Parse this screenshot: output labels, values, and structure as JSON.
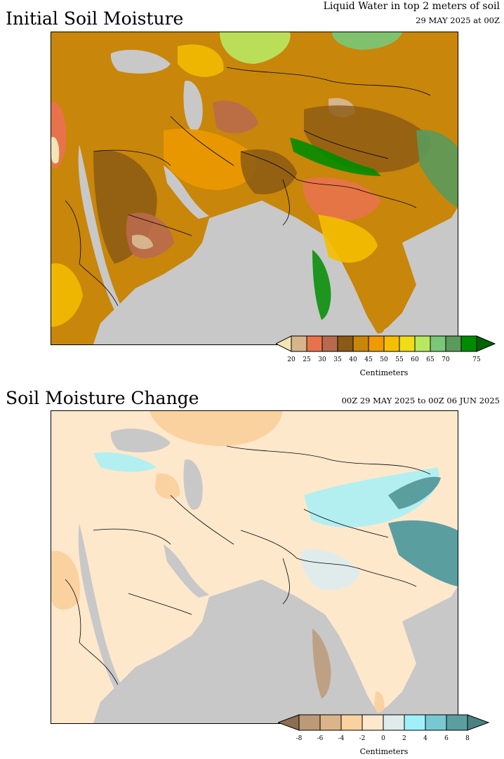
{
  "panel1": {
    "title": "Initial Soil Moisture",
    "subtitle_line1": "Liquid Water in top 2 meters of soil",
    "subtitle_line2": "29 MAY 2025 at 00Z",
    "legend": {
      "ticks": [
        "20",
        "25",
        "30",
        "35",
        "40",
        "45",
        "50",
        "55",
        "60",
        "65",
        "70",
        "75"
      ],
      "units": "Centimeters",
      "colors": [
        "#f3e6b4",
        "#d6b48c",
        "#e8734a",
        "#b86a4e",
        "#8b5a14",
        "#c8860a",
        "#ee9a00",
        "#f5be00",
        "#f0dc18",
        "#b8e860",
        "#78c878",
        "#5a9a5a",
        "#008c00",
        "#006400"
      ]
    }
  },
  "panel2": {
    "title": "Soil Moisture Change",
    "subtitle": "00Z 29 MAY 2025 to 00Z 06 JUN 2025",
    "legend": {
      "ticks": [
        "-8",
        "-6",
        "-4",
        "-2",
        "0",
        "2",
        "4",
        "6",
        "8"
      ],
      "units": "Centimeters",
      "colors": [
        "#8c6e50",
        "#bc9a78",
        "#dcb48a",
        "#fad2a0",
        "#fde8cc",
        "#e0ecec",
        "#a0f0fa",
        "#78c8d2",
        "#5a9ea0",
        "#4a8282"
      ]
    }
  }
}
